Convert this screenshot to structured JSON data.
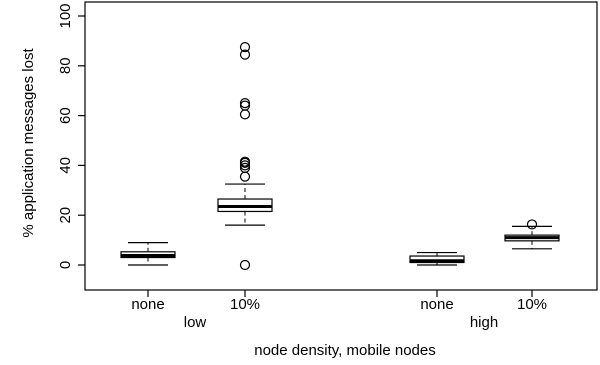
{
  "chart_data": {
    "type": "boxplot",
    "title": "",
    "xlabel": "node density, mobile nodes",
    "ylabel": "% application messages lost",
    "ylim": [
      0,
      100
    ],
    "yticks": [
      0,
      20,
      40,
      60,
      80,
      100
    ],
    "groups": [
      "low",
      "high"
    ],
    "categories": [
      "none",
      "10%",
      "none",
      "10%"
    ],
    "boxes": [
      {
        "group": "low",
        "label": "none",
        "whisker_low": 0,
        "q1": 3,
        "median": 3.8,
        "q3": 5.3,
        "whisker_high": 9,
        "outliers": []
      },
      {
        "group": "low",
        "label": "10%",
        "whisker_low": 16,
        "q1": 21.5,
        "median": 23.5,
        "q3": 26.5,
        "whisker_high": 32.5,
        "outliers": [
          0,
          35.5,
          39,
          40,
          41,
          41.5,
          60.5,
          64,
          65,
          84.5,
          87.5
        ]
      },
      {
        "group": "high",
        "label": "none",
        "whisker_low": 0,
        "q1": 1,
        "median": 1.7,
        "q3": 3.6,
        "whisker_high": 5,
        "outliers": []
      },
      {
        "group": "high",
        "label": "10%",
        "whisker_low": 6.5,
        "q1": 9.7,
        "median": 11,
        "q3": 12,
        "whisker_high": 15.5,
        "outliers": [
          16.3
        ]
      }
    ],
    "grid": false,
    "legend": "none"
  }
}
